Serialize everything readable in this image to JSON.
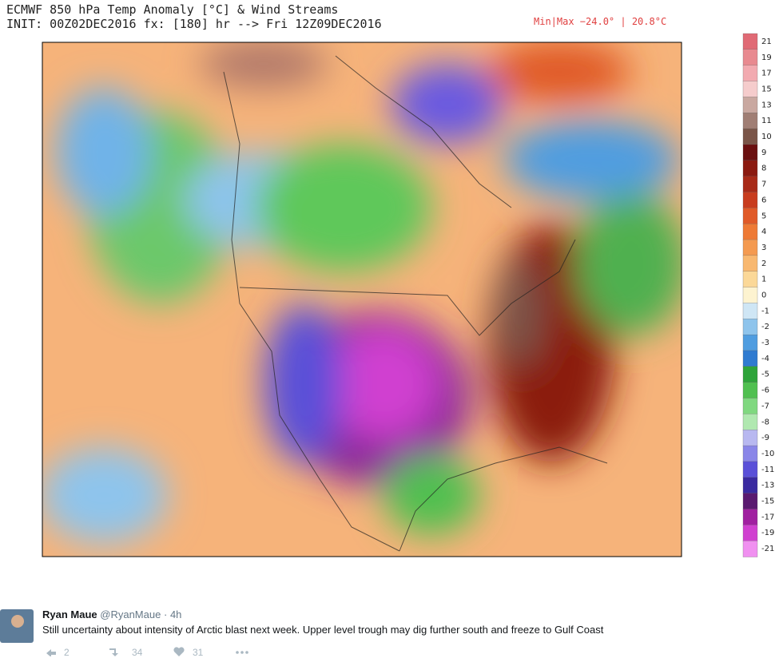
{
  "map": {
    "title": "ECMWF 850 hPa Temp Anomaly [°C] & Wind Streams",
    "init": "INIT: 00Z02DEC2016 fx: [180] hr --> Fri 12Z09DEC2016",
    "minmax": "Min|Max −24.0° | 20.8°C",
    "colorbar": {
      "labels": [
        21,
        19,
        17,
        15,
        13,
        11,
        10,
        9,
        8,
        7,
        6,
        5,
        4,
        3,
        2,
        1,
        0,
        -1,
        -2,
        -3,
        -4,
        -5,
        -6,
        -7,
        -8,
        -9,
        -10,
        -11,
        -13,
        -15,
        -17,
        -19,
        -21
      ],
      "colors": [
        "#e06a75",
        "#e88a90",
        "#f2aab0",
        "#f5cccc",
        "#c9a8a0",
        "#a07e74",
        "#7a5548",
        "#6a1010",
        "#8b1a10",
        "#a82a18",
        "#c83c1e",
        "#e05a28",
        "#ee7a35",
        "#f49a50",
        "#f8b870",
        "#fbd898",
        "#fdf3d0",
        "#cfe6f5",
        "#8ec4ec",
        "#4f9de0",
        "#2f7bd0",
        "#2ea43a",
        "#50c050",
        "#80d880",
        "#b0e8b0",
        "#b8b8f0",
        "#8a86e8",
        "#5a50d8",
        "#3a2aa0",
        "#5a1a70",
        "#a020a0",
        "#d040d0",
        "#f090f0"
      ]
    }
  },
  "tweet": {
    "name": "Ryan Maue",
    "handle": "@RyanMaue",
    "time": "4h",
    "text": "Still uncertainty about intensity of Arctic blast next week. Upper level trough may dig further south and freeze to Gulf Coast",
    "replies": "2",
    "retweets": "34",
    "likes": "31"
  }
}
